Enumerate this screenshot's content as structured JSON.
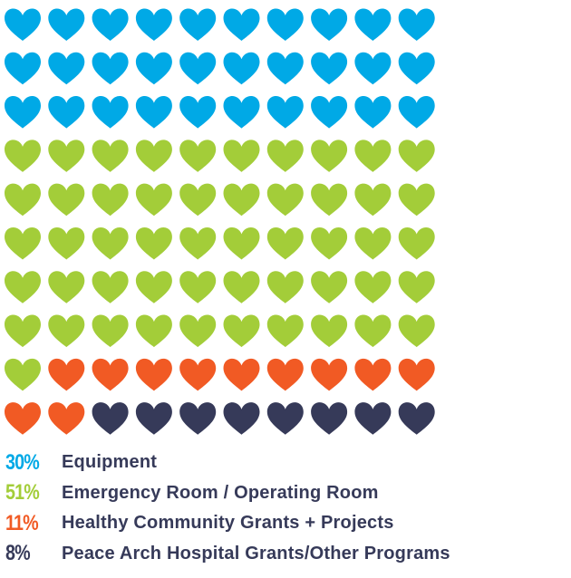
{
  "chart_data": {
    "type": "waffle",
    "grid": {
      "rows": 10,
      "columns": 10,
      "unit": "heart"
    },
    "series": [
      {
        "percent": "30%",
        "label": "Equipment",
        "count": 30,
        "color": "#00a9e6"
      },
      {
        "percent": "51%",
        "label": "Emergency Room / Operating Room",
        "count": 51,
        "color": "#a3cd39"
      },
      {
        "percent": "11%",
        "label": "Healthy Community Grants + Projects",
        "count": 11,
        "color": "#f15a24"
      },
      {
        "percent": "8%",
        "label": "Peace Arch Hospital Grants/Other Programs",
        "count": 8,
        "color": "#363a59"
      }
    ]
  }
}
